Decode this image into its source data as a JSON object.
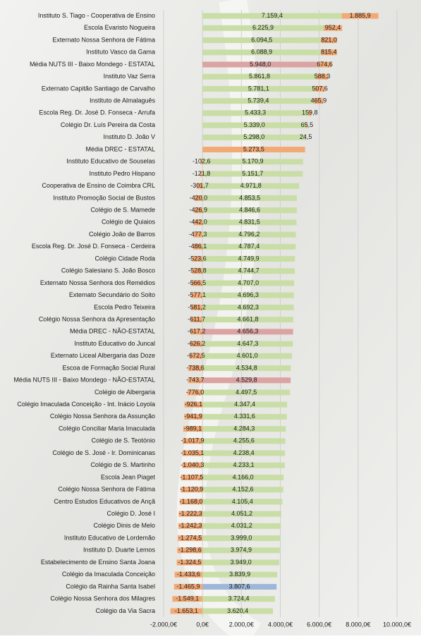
{
  "chart_data": {
    "type": "bar",
    "orientation": "horizontal",
    "stacked": true,
    "categories": [
      "Instituto S. Tiago - Cooperativa de Ensino",
      "Escola Evaristo Nogueira",
      "Externato Nossa Senhora de Fátima",
      "Instituto Vasco da Gama",
      "Média NUTS III - Baixo Mondego - ESTATAL",
      "Instituto Vaz Serra",
      "Externato Capitão Santiago de Carvalho",
      "Instituto de Almalaguês",
      "Escola Reg. Dr. José D. Fonseca - Arrufa",
      "Colégio Dr. Luís Pereira da Costa",
      "Instituto D. João V",
      "Média DREC - ESTATAL",
      "Instituto Educativo de Souselas",
      "Instituto Pedro Hispano",
      "Cooperativa de Ensino de Coimbra CRL",
      "Instituto Promoção Social de Bustos",
      "Colégio de S. Mamede",
      "Colégio de Quiaios",
      "Colégio João de Barros",
      "Escola Reg. Dr. José D. Fonseca - Cerdeira",
      "Colégio Cidade Roda",
      "Colégio Salesiano S. João Bosco",
      "Externato Nossa Senhora dos Remédios",
      "Externato Secundário do Soito",
      "Escola Pedro Teixeira",
      "Colégio Nossa Senhora da Apresentação",
      "Média DREC - NÃO-ESTATAL",
      "Instituto Educativo do Juncal",
      "Externato Liceal Albergaria das Doze",
      "Escoa de Formação Social Rural",
      "Média NUTS III - Baixo Mondego - NÃO-ESTATAL",
      "Colégio de Albergaria",
      "Colégio Imaculada Conceição - Int. Inácio Loyola",
      "Colégio Nossa Senhora da Assunção",
      "Colégio Conciliar Maria Imaculada",
      "Colégio de S. Teotónio",
      "Colégio de S. José - Ir. Dominicanas",
      "Colégio de S. Martinho",
      "Escola Jean Piaget",
      "Colégio Nossa Senhora de Fátima",
      "Centro Estudos Educativos de Ançã",
      "Colégio D. José I",
      "Colégio Dinis de Melo",
      "Instituto Educativo de Lordemão",
      "Instituto D. Duarte Lemos",
      "Estabelecimento de Ensino Santa Joana",
      "Colégio da Imaculada Conceição",
      "Colégio da Rainha Santa Isabel",
      "Colégio Nossa Senhora dos Milagres",
      "Colégio da Via Sacra"
    ],
    "series": [
      {
        "color": "#c9dea6",
        "point_colors": {
          "4": "#dba3a2",
          "11": "#f2aa75",
          "26": "#dba3a2",
          "30": "#dba3a2",
          "47": "#9db7da"
        },
        "values": [
          7159.4,
          6225.9,
          6094.5,
          6088.9,
          5948.0,
          5861.8,
          5781.1,
          5739.4,
          5433.3,
          5339.0,
          5298.0,
          5273.5,
          5170.9,
          5151.7,
          4971.8,
          4853.5,
          4846.6,
          4831.5,
          4796.2,
          4787.4,
          4749.9,
          4744.7,
          4707.0,
          4696.3,
          4692.3,
          4661.8,
          4656.3,
          4647.3,
          4601.0,
          4534.8,
          4529.8,
          4497.5,
          4347.4,
          4331.6,
          4284.3,
          4255.6,
          4238.4,
          4233.1,
          4166.0,
          4152.6,
          4105.4,
          4051.2,
          4031.2,
          3999.0,
          3974.9,
          3949.0,
          3839.9,
          3807.6,
          3724.4,
          3620.4
        ],
        "value_labels": [
          "7.159,4",
          "6.225,9",
          "6.094,5",
          "6.088,9",
          "5.948,0",
          "5.861,8",
          "5.781,1",
          "5.739,4",
          "5.433,3",
          "5.339,0",
          "5.298,0",
          "5.273,5",
          "5.170,9",
          "5.151,7",
          "4.971,8",
          "4.853,5",
          "4.846,6",
          "4.831,5",
          "4.796,2",
          "4.787,4",
          "4.749,9",
          "4.744,7",
          "4.707,0",
          "4.696,3",
          "4.692,3",
          "4.661,8",
          "4.656,3",
          "4.647,3",
          "4.601,0",
          "4.534,8",
          "4.529,8",
          "4.497,5",
          "4.347,4",
          "4.331,6",
          "4.284,3",
          "4.255,6",
          "4.238,4",
          "4.233,1",
          "4.166,0",
          "4.152,6",
          "4.105,4",
          "4.051,2",
          "4.031,2",
          "3.999,0",
          "3.974,9",
          "3.949,0",
          "3.839,9",
          "3.807,6",
          "3.724,4",
          "3.620,4"
        ]
      },
      {
        "color": "#f2aa75",
        "values": [
          1885.9,
          952.4,
          821.0,
          815.4,
          674.6,
          588.3,
          507.6,
          465.9,
          159.8,
          65.5,
          24.5,
          null,
          -102.6,
          -121.8,
          -301.7,
          -420.0,
          -426.9,
          -442.0,
          -477.3,
          -486.1,
          -523.6,
          -528.8,
          -566.5,
          -577.1,
          -581.2,
          -611.7,
          -617.2,
          -626.2,
          -672.5,
          -738.6,
          -743.7,
          -776.0,
          -926.1,
          -941.9,
          -989.1,
          -1017.9,
          -1035.1,
          -1040.3,
          -1107.5,
          -1120.9,
          -1168.0,
          -1222.3,
          -1242.3,
          -1274.5,
          -1298.6,
          -1324.5,
          -1433.6,
          -1465.9,
          -1549.1,
          -1653.1
        ],
        "value_labels": [
          "1.885,9",
          "952,4",
          "821,0",
          "815,4",
          "674,6",
          "588,3",
          "507,6",
          "465,9",
          "159,8",
          "65,5",
          "24,5",
          null,
          "-102,6",
          "-121,8",
          "-301,7",
          "-420,0",
          "-426,9",
          "-442,0",
          "-477,3",
          "-486,1",
          "-523,6",
          "-528,8",
          "-566,5",
          "-577,1",
          "-581,2",
          "-611,7",
          "-617,2",
          "-626,2",
          "-672,5",
          "-738,6",
          "-743,7",
          "-776,0",
          "-926,1",
          "-941,9",
          "-989,1",
          "-1.017,9",
          "-1.035,1",
          "-1.040,3",
          "-1.107,5",
          "-1.120,9",
          "-1.168,0",
          "-1.222,3",
          "-1.242,3",
          "-1.274,5",
          "-1.298,6",
          "-1.324,5",
          "-1.433,6",
          "-1.465,9",
          "-1.549,1",
          "-1.653,1"
        ]
      }
    ],
    "xlim": [
      -2000,
      10000
    ],
    "xticks": [
      {
        "value": -2000,
        "label": "-2.000,0€"
      },
      {
        "value": 0,
        "label": "0,0€"
      },
      {
        "value": 2000,
        "label": "2.000,0€"
      },
      {
        "value": 4000,
        "label": "4.000,0€"
      },
      {
        "value": 6000,
        "label": "6.000,0€"
      },
      {
        "value": 8000,
        "label": "8.000,0€"
      },
      {
        "value": 10000,
        "label": "10.000,0€"
      }
    ],
    "grid": true
  }
}
